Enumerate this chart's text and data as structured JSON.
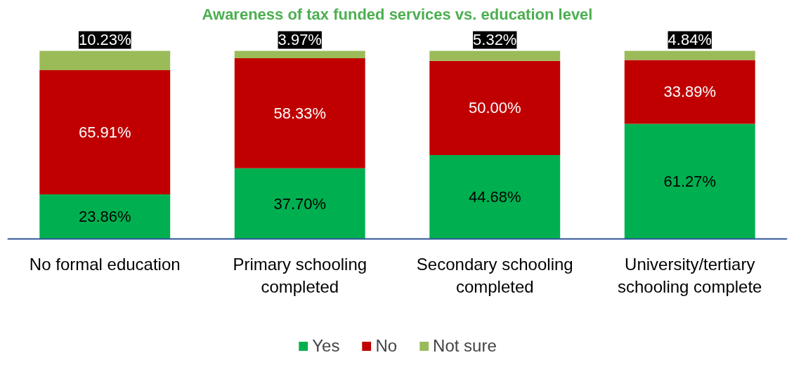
{
  "chart_data": {
    "type": "bar",
    "title": "Awareness of tax funded services vs. education level",
    "categories": [
      "No formal education",
      "Primary schooling completed",
      "Secondary schooling completed",
      "University/tertiary schooling complete"
    ],
    "stacked": true,
    "legend": "bottom",
    "series": [
      {
        "name": "Yes",
        "color": "#00b050",
        "values": [
          23.86,
          37.7,
          44.68,
          61.27
        ],
        "value_labels": [
          "23.86%",
          "37.70%",
          "44.68%",
          "61.27%"
        ]
      },
      {
        "name": "No",
        "color": "#c00000",
        "values": [
          65.91,
          58.33,
          50.0,
          33.89
        ],
        "value_labels": [
          "65.91%",
          "58.33%",
          "50.00%",
          "33.89%"
        ]
      },
      {
        "name": "Not sure",
        "color": "#9bbb59",
        "values": [
          10.23,
          3.97,
          5.32,
          4.84
        ],
        "value_labels": [
          "10.23%",
          "3.97%",
          "5.32%",
          "4.84%"
        ]
      }
    ]
  }
}
